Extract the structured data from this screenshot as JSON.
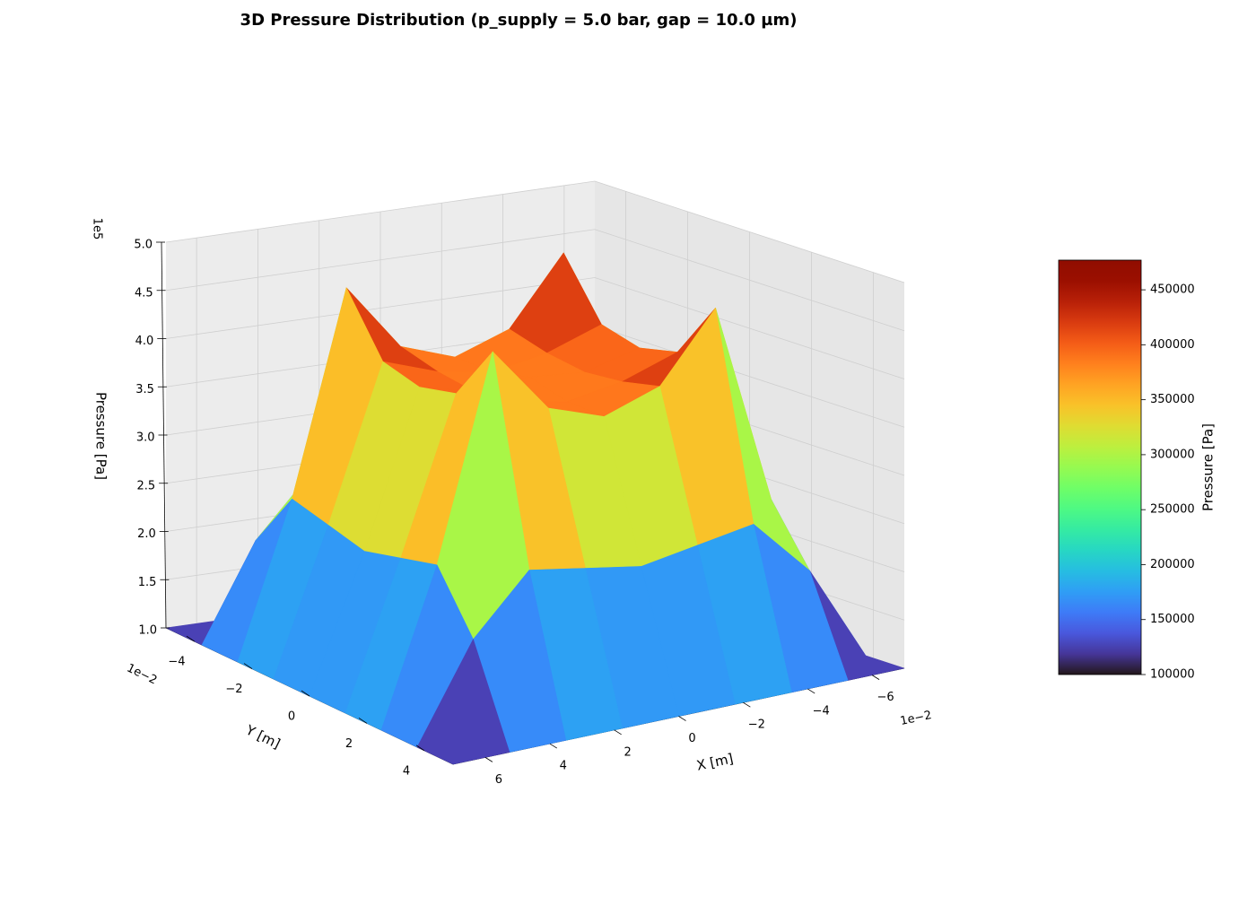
{
  "chart_data": {
    "type": "surface",
    "title": "3D Pressure Distribution (p_supply = 5.0 bar, gap = 10.0 µm)",
    "xlabel": "X [m]",
    "ylabel": "Y [m]",
    "zlabel": "Pressure [Pa]",
    "x": [
      -0.07,
      -0.0525,
      -0.035,
      -0.0175,
      0,
      0.0175,
      0.035,
      0.0525,
      0.07
    ],
    "y": [
      -0.05,
      -0.0375,
      -0.025,
      -0.0125,
      0,
      0.0125,
      0.025,
      0.0375,
      0.05
    ],
    "z": [
      [
        100000,
        100000,
        100000,
        100000,
        100000,
        100000,
        100000,
        100000,
        100000
      ],
      [
        100000,
        200000,
        260000,
        250000,
        240000,
        250000,
        260000,
        200000,
        100000
      ],
      [
        100000,
        260000,
        470000,
        400000,
        380000,
        400000,
        470000,
        260000,
        100000
      ],
      [
        100000,
        250000,
        410000,
        390000,
        380000,
        390000,
        410000,
        250000,
        100000
      ],
      [
        100000,
        240000,
        400000,
        385000,
        390000,
        385000,
        400000,
        240000,
        100000
      ],
      [
        100000,
        250000,
        410000,
        390000,
        380000,
        390000,
        410000,
        250000,
        100000
      ],
      [
        100000,
        260000,
        470000,
        400000,
        380000,
        400000,
        470000,
        260000,
        100000
      ],
      [
        100000,
        200000,
        260000,
        250000,
        240000,
        250000,
        260000,
        200000,
        100000
      ],
      [
        100000,
        100000,
        100000,
        100000,
        100000,
        100000,
        100000,
        100000,
        100000
      ]
    ],
    "xlim": [
      -0.07,
      0.07
    ],
    "ylim": [
      -0.05,
      0.05
    ],
    "zlim": [
      100000,
      500000
    ],
    "xticks": [
      {
        "value": -0.06,
        "label": "−6"
      },
      {
        "value": -0.04,
        "label": "−4"
      },
      {
        "value": -0.02,
        "label": "−2"
      },
      0,
      {
        "value": 0.02,
        "label": "2"
      },
      {
        "value": 0.04,
        "label": "4"
      },
      {
        "value": 0.06,
        "label": "6"
      }
    ],
    "yticks": [
      {
        "value": -0.04,
        "label": "−4"
      },
      {
        "value": -0.02,
        "label": "−2"
      },
      0,
      {
        "value": 0.02,
        "label": "2"
      },
      {
        "value": 0.04,
        "label": "4"
      }
    ],
    "zticks": [
      {
        "value": 100000,
        "label": "1.0"
      },
      {
        "value": 150000,
        "label": "1.5"
      },
      {
        "value": 200000,
        "label": "2.0"
      },
      {
        "value": 250000,
        "label": "2.5"
      },
      {
        "value": 300000,
        "label": "3.0"
      },
      {
        "value": 350000,
        "label": "3.5"
      },
      {
        "value": 400000,
        "label": "4.0"
      },
      {
        "value": 450000,
        "label": "4.5"
      },
      {
        "value": 500000,
        "label": "5.0"
      }
    ],
    "x_offset_label": "1e−2",
    "y_offset_label": "1e−2",
    "z_offset_label": "1e5",
    "colormap": "turbo",
    "grid": true,
    "colorbar": {
      "label": "Pressure [Pa]",
      "clim": [
        100000,
        477000
      ],
      "ticks": [
        100000,
        150000,
        200000,
        250000,
        300000,
        350000,
        400000,
        450000
      ]
    }
  }
}
